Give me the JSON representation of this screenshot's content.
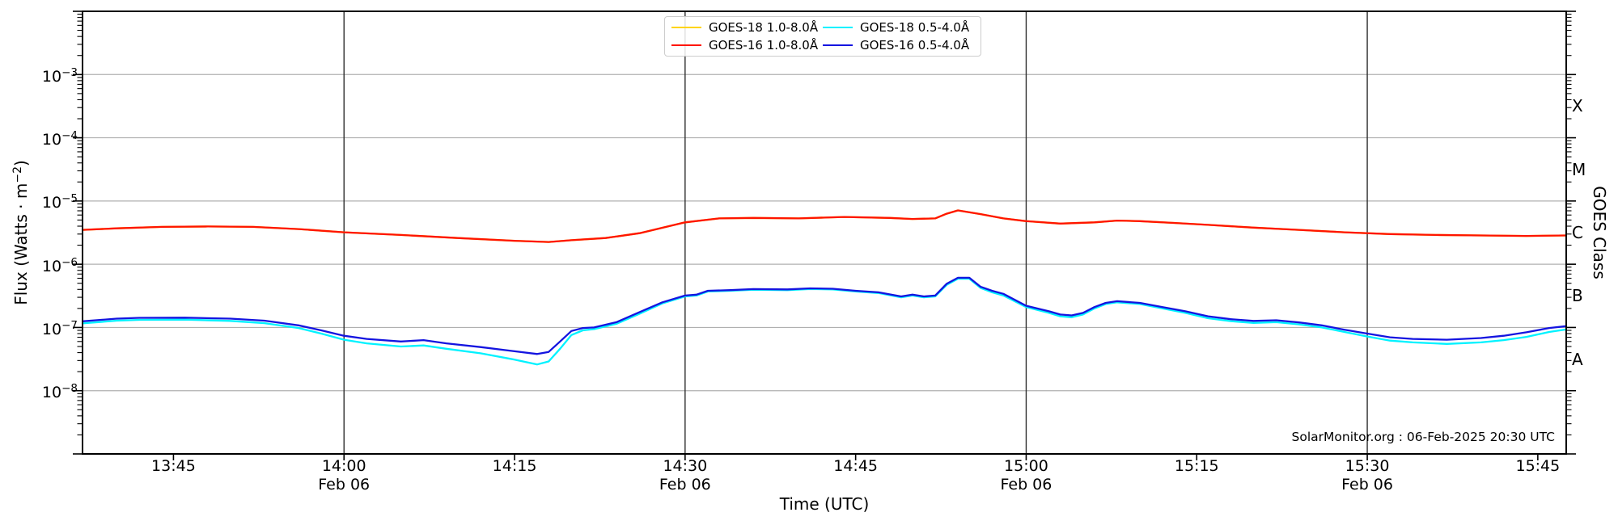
{
  "annotation": "SolarMonitor.org : 06-Feb-2025 20:30 UTC",
  "chart_data": {
    "type": "line",
    "title": "",
    "xlabel": "Time (UTC)",
    "ylabel_left": {
      "pre": "Flux (Watts · m",
      "exp": "−2",
      "post": ")"
    },
    "ylabel_right": "GOES Class",
    "y_scale": "log",
    "ylim": [
      1e-09,
      0.01
    ],
    "xlim_minutes_utc": [
      817,
      947.5
    ],
    "grid": {
      "horizontal": "on",
      "vertical": "on"
    },
    "legend_position": "upper center",
    "y_gridlines": [
      0.001,
      0.0001,
      1e-05,
      1e-06,
      1e-07,
      1e-08
    ],
    "y_ticks": [
      {
        "base": "10",
        "exp": "−3",
        "flux": 0.001
      },
      {
        "base": "10",
        "exp": "−4",
        "flux": 0.0001
      },
      {
        "base": "10",
        "exp": "−5",
        "flux": 1e-05
      },
      {
        "base": "10",
        "exp": "−6",
        "flux": 1e-06
      },
      {
        "base": "10",
        "exp": "−7",
        "flux": 1e-07
      },
      {
        "base": "10",
        "exp": "−8",
        "flux": 1e-08
      }
    ],
    "x_gridline_minutes": [
      840,
      870,
      900,
      930
    ],
    "x_ticks": [
      {
        "minutes": 825,
        "label": "13:45",
        "sublabel": ""
      },
      {
        "minutes": 840,
        "label": "14:00",
        "sublabel": "Feb 06"
      },
      {
        "minutes": 855,
        "label": "14:15",
        "sublabel": ""
      },
      {
        "minutes": 870,
        "label": "14:30",
        "sublabel": "Feb 06"
      },
      {
        "minutes": 885,
        "label": "14:45",
        "sublabel": ""
      },
      {
        "minutes": 900,
        "label": "15:00",
        "sublabel": "Feb 06"
      },
      {
        "minutes": 915,
        "label": "15:15",
        "sublabel": ""
      },
      {
        "minutes": 930,
        "label": "15:30",
        "sublabel": "Feb 06"
      },
      {
        "minutes": 945,
        "label": "15:45",
        "sublabel": ""
      }
    ],
    "goes_class_labels": [
      {
        "label": "X",
        "flux": 0.000316
      },
      {
        "label": "M",
        "flux": 3.16e-05
      },
      {
        "label": "C",
        "flux": 3.16e-06
      },
      {
        "label": "B",
        "flux": 3.16e-07
      },
      {
        "label": "A",
        "flux": 3.16e-08
      }
    ],
    "legend": [
      {
        "label": "GOES-18 1.0-8.0Å",
        "color": "#ffd400"
      },
      {
        "label": "GOES-16 1.0-8.0Å",
        "color": "#ff1400"
      },
      {
        "label": "GOES-18 0.5-4.0Å",
        "color": "#00f2ff"
      },
      {
        "label": "GOES-16 0.5-4.0Å",
        "color": "#1414e0"
      }
    ],
    "series": [
      {
        "name": "GOES-18 1.0-8.0Å",
        "color": "#ffd400",
        "t": [
          817,
          820,
          824,
          828,
          832,
          836,
          840,
          845,
          850,
          855,
          858,
          860,
          863,
          866,
          870,
          873,
          876,
          880,
          884,
          888,
          890,
          892,
          893,
          894,
          896,
          898,
          900,
          903,
          906,
          908,
          910,
          913,
          916,
          920,
          924,
          928,
          932,
          936,
          940,
          944,
          947.5
        ],
        "flux": [
          3.5e-06,
          3.7e-06,
          3.9e-06,
          3.95e-06,
          3.9e-06,
          3.6e-06,
          3.2e-06,
          2.9e-06,
          2.6e-06,
          2.35e-06,
          2.25e-06,
          2.4e-06,
          2.6e-06,
          3.1e-06,
          4.6e-06,
          5.3e-06,
          5.4e-06,
          5.3e-06,
          5.6e-06,
          5.4e-06,
          5.2e-06,
          5.3e-06,
          6.3e-06,
          7.1e-06,
          6.2e-06,
          5.3e-06,
          4.8e-06,
          4.4e-06,
          4.6e-06,
          4.9e-06,
          4.8e-06,
          4.5e-06,
          4.2e-06,
          3.8e-06,
          3.5e-06,
          3.2e-06,
          3e-06,
          2.9e-06,
          2.85e-06,
          2.8e-06,
          2.85e-06
        ]
      },
      {
        "name": "GOES-16 1.0-8.0Å",
        "color": "#ff1400",
        "t": [
          817,
          820,
          824,
          828,
          832,
          836,
          840,
          845,
          850,
          855,
          858,
          860,
          863,
          866,
          870,
          873,
          876,
          880,
          884,
          888,
          890,
          892,
          893,
          894,
          896,
          898,
          900,
          903,
          906,
          908,
          910,
          913,
          916,
          920,
          924,
          928,
          932,
          936,
          940,
          944,
          947.5
        ],
        "flux": [
          3.5e-06,
          3.7e-06,
          3.9e-06,
          3.95e-06,
          3.9e-06,
          3.6e-06,
          3.2e-06,
          2.9e-06,
          2.6e-06,
          2.35e-06,
          2.25e-06,
          2.4e-06,
          2.6e-06,
          3.1e-06,
          4.6e-06,
          5.3e-06,
          5.4e-06,
          5.3e-06,
          5.6e-06,
          5.4e-06,
          5.2e-06,
          5.3e-06,
          6.3e-06,
          7.1e-06,
          6.2e-06,
          5.3e-06,
          4.8e-06,
          4.4e-06,
          4.6e-06,
          4.9e-06,
          4.8e-06,
          4.5e-06,
          4.2e-06,
          3.8e-06,
          3.5e-06,
          3.2e-06,
          3e-06,
          2.9e-06,
          2.85e-06,
          2.8e-06,
          2.85e-06
        ]
      },
      {
        "name": "GOES-18 0.5-4.0Å",
        "color": "#00f2ff",
        "t": [
          817,
          820,
          822,
          826,
          830,
          833,
          836,
          838,
          840,
          842,
          845,
          847,
          849,
          852,
          855,
          857,
          858,
          859,
          860,
          861,
          862,
          864,
          866,
          868,
          870,
          871,
          872,
          874,
          876,
          879,
          881,
          883,
          885,
          887,
          889,
          890,
          891,
          892,
          893,
          894,
          895,
          896,
          897,
          898,
          900,
          902,
          903,
          904,
          905,
          906,
          907,
          908,
          910,
          912,
          914,
          916,
          918,
          920,
          922,
          924,
          926,
          928,
          930,
          932,
          934,
          937,
          940,
          942,
          944,
          946,
          947.5
        ],
        "flux": [
          1.16e-07,
          1.28e-07,
          1.32e-07,
          1.33e-07,
          1.27e-07,
          1.17e-07,
          9.8e-08,
          8e-08,
          6.4e-08,
          5.6e-08,
          5e-08,
          5.2e-08,
          4.6e-08,
          3.9e-08,
          3.1e-08,
          2.6e-08,
          2.9e-08,
          4.6e-08,
          7.6e-08,
          9e-08,
          9.4e-08,
          1.15e-07,
          1.65e-07,
          2.4e-07,
          3.1e-07,
          3.2e-07,
          3.7e-07,
          3.8e-07,
          3.95e-07,
          3.9e-07,
          4.05e-07,
          4e-07,
          3.7e-07,
          3.5e-07,
          3e-07,
          3.2e-07,
          3e-07,
          3.1e-07,
          4.7e-07,
          5.9e-07,
          5.9e-07,
          4.2e-07,
          3.6e-07,
          3.2e-07,
          2.1e-07,
          1.7e-07,
          1.5e-07,
          1.45e-07,
          1.6e-07,
          2e-07,
          2.35e-07,
          2.5e-07,
          2.35e-07,
          2e-07,
          1.7e-07,
          1.4e-07,
          1.26e-07,
          1.18e-07,
          1.21e-07,
          1.12e-07,
          1e-07,
          8.5e-08,
          7.2e-08,
          6.2e-08,
          5.8e-08,
          5.5e-08,
          5.8e-08,
          6.3e-08,
          7.1e-08,
          8.5e-08,
          9.3e-08
        ]
      },
      {
        "name": "GOES-16 0.5-4.0Å",
        "color": "#1414e0",
        "t": [
          817,
          820,
          822,
          826,
          830,
          833,
          836,
          838,
          840,
          842,
          845,
          847,
          849,
          852,
          855,
          857,
          858,
          859,
          860,
          861,
          862,
          864,
          866,
          868,
          870,
          871,
          872,
          874,
          876,
          879,
          881,
          883,
          885,
          887,
          889,
          890,
          891,
          892,
          893,
          894,
          895,
          896,
          897,
          898,
          900,
          902,
          903,
          904,
          905,
          906,
          907,
          908,
          910,
          912,
          914,
          916,
          918,
          920,
          922,
          924,
          926,
          928,
          930,
          932,
          934,
          937,
          940,
          942,
          944,
          946,
          947.5
        ],
        "flux": [
          1.25e-07,
          1.38e-07,
          1.42e-07,
          1.43e-07,
          1.38e-07,
          1.28e-07,
          1.08e-07,
          9e-08,
          7.4e-08,
          6.6e-08,
          6e-08,
          6.3e-08,
          5.6e-08,
          4.9e-08,
          4.2e-08,
          3.8e-08,
          4.1e-08,
          6e-08,
          8.8e-08,
          9.8e-08,
          1e-07,
          1.22e-07,
          1.75e-07,
          2.5e-07,
          3.2e-07,
          3.3e-07,
          3.8e-07,
          3.9e-07,
          4.05e-07,
          4e-07,
          4.15e-07,
          4.1e-07,
          3.8e-07,
          3.6e-07,
          3.1e-07,
          3.3e-07,
          3.1e-07,
          3.2e-07,
          4.9e-07,
          6.1e-07,
          6.1e-07,
          4.4e-07,
          3.8e-07,
          3.4e-07,
          2.2e-07,
          1.8e-07,
          1.6e-07,
          1.55e-07,
          1.7e-07,
          2.1e-07,
          2.45e-07,
          2.6e-07,
          2.45e-07,
          2.1e-07,
          1.8e-07,
          1.5e-07,
          1.35e-07,
          1.27e-07,
          1.3e-07,
          1.2e-07,
          1.08e-07,
          9.2e-08,
          8e-08,
          7e-08,
          6.6e-08,
          6.4e-08,
          6.8e-08,
          7.4e-08,
          8.4e-08,
          9.8e-08,
          1.05e-07
        ]
      }
    ],
    "colors": {
      "h_grid": "#b0b0b0",
      "v_grid": "#2e2e2e",
      "frame": "#000000"
    }
  }
}
